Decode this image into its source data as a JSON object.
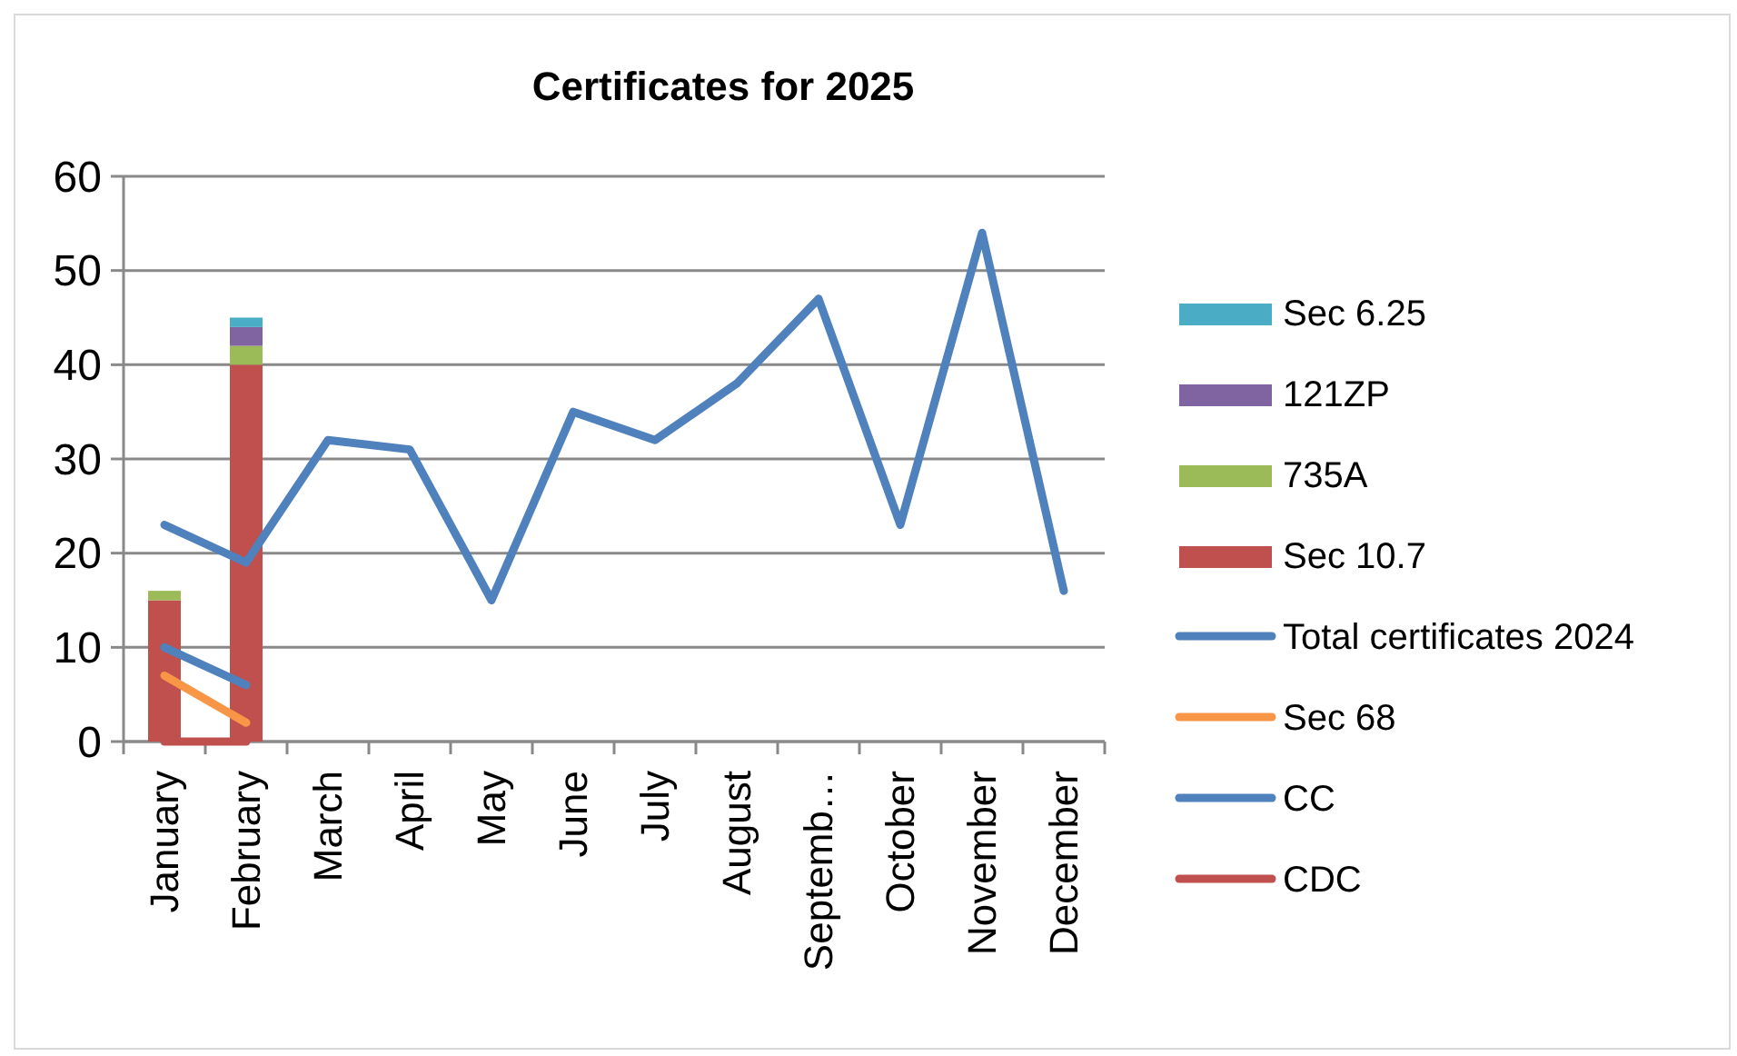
{
  "chart_data": {
    "type": "bar",
    "title": "Certificates for 2025",
    "stacked": true,
    "grid": "y",
    "legend": "right",
    "categories": [
      "January",
      "February",
      "March",
      "April",
      "May",
      "June",
      "July",
      "August",
      "Septemb…",
      "October",
      "November",
      "December"
    ],
    "ylim": [
      0,
      60
    ],
    "yticks": [
      0,
      10,
      20,
      30,
      40,
      50,
      60
    ],
    "series": [
      {
        "name": "Sec 10.7",
        "color": "#c0504d",
        "values": [
          15,
          40,
          null,
          null,
          null,
          null,
          null,
          null,
          null,
          null,
          null,
          null
        ]
      },
      {
        "name": "735A",
        "color": "#9bbb59",
        "values": [
          1,
          2,
          null,
          null,
          null,
          null,
          null,
          null,
          null,
          null,
          null,
          null
        ]
      },
      {
        "name": "121ZP",
        "color": "#8064a2",
        "values": [
          null,
          2,
          null,
          null,
          null,
          null,
          null,
          null,
          null,
          null,
          null,
          null
        ]
      },
      {
        "name": "Sec 6.25",
        "color": "#4bacc6",
        "values": [
          null,
          1,
          null,
          null,
          null,
          null,
          null,
          null,
          null,
          null,
          null,
          null
        ]
      },
      {
        "name": "Total certificates 2024",
        "type": "line",
        "color": "#4f81bd",
        "values": [
          23,
          19,
          32,
          31,
          15,
          35,
          32,
          38,
          47,
          23,
          54,
          16
        ]
      },
      {
        "name": "Sec 68",
        "type": "line",
        "color": "#f79646",
        "values": [
          7,
          2,
          null,
          null,
          null,
          null,
          null,
          null,
          null,
          null,
          null,
          null
        ]
      },
      {
        "name": "CC",
        "type": "line",
        "color": "#4f81bd",
        "values": [
          10,
          6,
          null,
          null,
          null,
          null,
          null,
          null,
          null,
          null,
          null,
          null
        ]
      },
      {
        "name": "CDC",
        "type": "line",
        "color": "#c0504d",
        "values": [
          0,
          0,
          null,
          null,
          null,
          null,
          null,
          null,
          null,
          null,
          null,
          null
        ]
      }
    ]
  }
}
